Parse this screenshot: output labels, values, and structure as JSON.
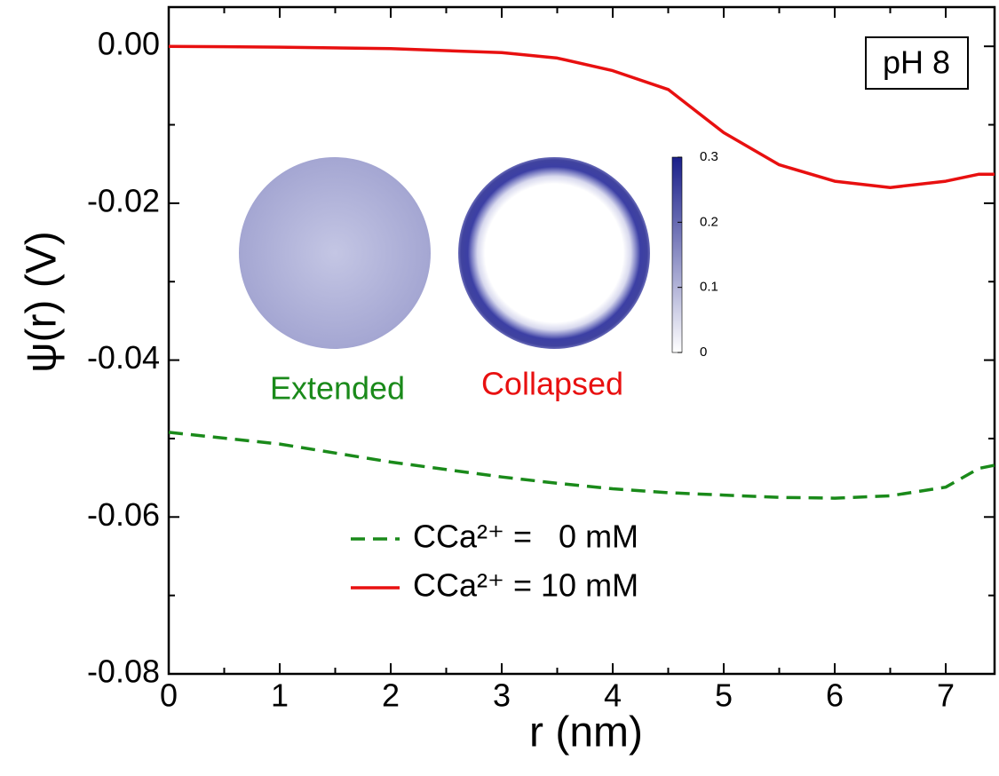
{
  "chart_data": {
    "type": "line",
    "xlabel": "r (nm)",
    "ylabel": "ψ(r) (V)",
    "xlim": [
      0,
      7.44
    ],
    "ylim": [
      -0.08,
      0.005
    ],
    "xticks": [
      0,
      1,
      2,
      3,
      4,
      5,
      6,
      7
    ],
    "xminorticks": [
      0.5,
      1.5,
      2.5,
      3.5,
      4.5,
      5.5,
      6.5
    ],
    "yticks": [
      {
        "value": -0.08,
        "label": "-0.08"
      },
      {
        "value": -0.06,
        "label": "-0.06"
      },
      {
        "value": -0.04,
        "label": "-0.04"
      },
      {
        "value": -0.02,
        "label": "-0.02"
      },
      {
        "value": 0,
        "label": "0.00"
      }
    ],
    "yminorticks": [
      -0.07,
      -0.05,
      -0.03,
      -0.01
    ],
    "x": [
      0,
      1,
      2,
      3,
      3.5,
      4,
      4.5,
      5,
      5.5,
      6,
      6.5,
      7,
      7.3,
      7.44
    ],
    "series": [
      {
        "name": "CCa²⁺ =   0 mM",
        "color": "#1a8a1a",
        "dash": true,
        "values": [
          -0.0492,
          -0.0507,
          -0.053,
          -0.0549,
          -0.0557,
          -0.0564,
          -0.0569,
          -0.0572,
          -0.0575,
          -0.0576,
          -0.0573,
          -0.0562,
          -0.0538,
          -0.0534
        ]
      },
      {
        "name": "CCa²⁺ = 10 mM",
        "color": "#e81010",
        "dash": false,
        "values": [
          0,
          -0.0001,
          -0.0003,
          -0.0008,
          -0.0015,
          -0.0031,
          -0.0055,
          -0.011,
          -0.0151,
          -0.0172,
          -0.018,
          -0.0172,
          -0.0163,
          -0.0163
        ]
      }
    ],
    "annotations": {
      "panel": "pH 8",
      "extended": "Extended",
      "collapsed": "Collapsed"
    },
    "colorbar": {
      "lim": [
        0,
        0.3
      ],
      "ticks": [
        0,
        0.1,
        0.2,
        0.3
      ]
    }
  }
}
